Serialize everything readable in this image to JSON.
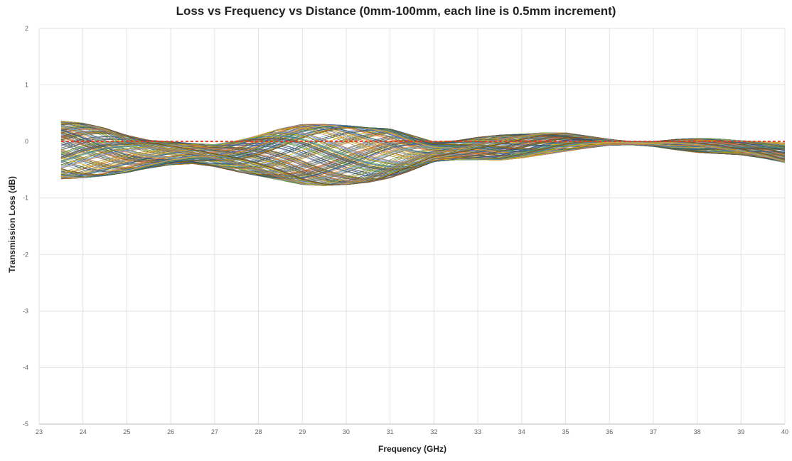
{
  "chart_data": {
    "type": "line",
    "title": "Loss vs Frequency vs Distance (0mm-100mm, each line is 0.5mm increment)",
    "xlabel": "Frequency (GHz)",
    "ylabel": "Transmission Loss (dB)",
    "xlim": [
      23,
      40
    ],
    "ylim": [
      -5,
      2
    ],
    "x_ticks": [
      "23",
      "24",
      "25",
      "26",
      "27",
      "28",
      "29",
      "30",
      "31",
      "32",
      "33",
      "34",
      "35",
      "36",
      "37",
      "38",
      "39",
      "40"
    ],
    "y_ticks": [
      "-5",
      "-4",
      "-3",
      "-2",
      "-1",
      "0",
      "1",
      "2"
    ],
    "grid": true,
    "legend": "none",
    "reference_line": {
      "y": 0,
      "style": "dashed",
      "color": "#e03c1f"
    },
    "frequency": [
      23.5,
      24,
      24.5,
      25,
      25.5,
      26,
      26.5,
      27,
      27.5,
      28,
      28.5,
      29,
      29.5,
      30,
      30.5,
      31,
      31.5,
      32,
      32.5,
      33,
      33.5,
      34,
      34.5,
      35,
      35.5,
      36,
      36.5,
      37,
      37.5,
      38,
      38.5,
      39,
      39.5,
      40
    ],
    "envelope_upper": [
      0.38,
      0.34,
      0.25,
      0.12,
      0.03,
      0.0,
      -0.03,
      -0.05,
      0.02,
      0.12,
      0.24,
      0.32,
      0.32,
      0.3,
      0.26,
      0.24,
      0.12,
      0.0,
      0.02,
      0.08,
      0.12,
      0.14,
      0.16,
      0.16,
      0.1,
      0.04,
      0.0,
      0.0,
      0.04,
      0.06,
      0.05,
      0.02,
      0.0,
      -0.02
    ],
    "envelope_lower": [
      -0.68,
      -0.66,
      -0.62,
      -0.56,
      -0.48,
      -0.42,
      -0.4,
      -0.45,
      -0.54,
      -0.62,
      -0.7,
      -0.78,
      -0.8,
      -0.78,
      -0.74,
      -0.66,
      -0.52,
      -0.36,
      -0.33,
      -0.33,
      -0.34,
      -0.3,
      -0.24,
      -0.18,
      -0.12,
      -0.07,
      -0.06,
      -0.09,
      -0.15,
      -0.2,
      -0.22,
      -0.24,
      -0.3,
      -0.38
    ],
    "series_count": 201,
    "series_palette": [
      "#4472c4",
      "#ed7d31",
      "#a5a5a5",
      "#ffc000",
      "#5b9bd5",
      "#70ad47",
      "#264478",
      "#9e480e",
      "#636363",
      "#997300",
      "#255e91",
      "#43682b"
    ]
  }
}
